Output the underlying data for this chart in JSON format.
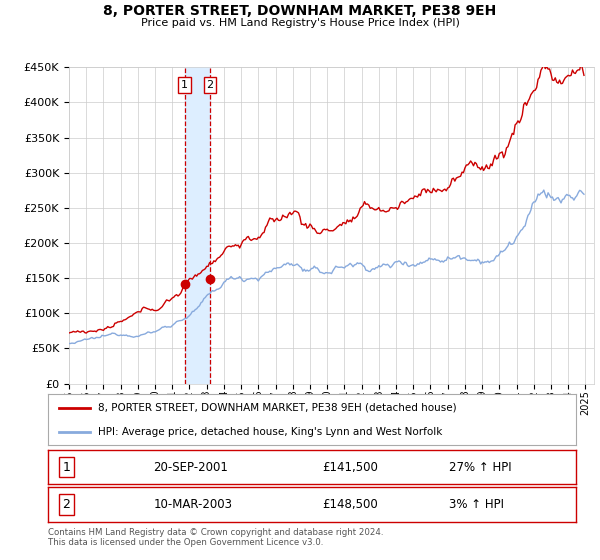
{
  "title": "8, PORTER STREET, DOWNHAM MARKET, PE38 9EH",
  "subtitle": "Price paid vs. HM Land Registry's House Price Index (HPI)",
  "ylim": [
    0,
    450000
  ],
  "yticks": [
    0,
    50000,
    100000,
    150000,
    200000,
    250000,
    300000,
    350000,
    400000,
    450000
  ],
  "xlim_start": 1995.0,
  "xlim_end": 2025.5,
  "xticks": [
    1995,
    1996,
    1997,
    1998,
    1999,
    2000,
    2001,
    2002,
    2003,
    2004,
    2005,
    2006,
    2007,
    2008,
    2009,
    2010,
    2011,
    2012,
    2013,
    2014,
    2015,
    2016,
    2017,
    2018,
    2019,
    2020,
    2021,
    2022,
    2023,
    2024,
    2025
  ],
  "sale1_date": 2001.72,
  "sale1_price": 141500,
  "sale1_label": "1",
  "sale2_date": 2003.19,
  "sale2_price": 148500,
  "sale2_label": "2",
  "legend_line1": "8, PORTER STREET, DOWNHAM MARKET, PE38 9EH (detached house)",
  "legend_line2": "HPI: Average price, detached house, King's Lynn and West Norfolk",
  "table_row1_num": "1",
  "table_row1_date": "20-SEP-2001",
  "table_row1_price": "£141,500",
  "table_row1_hpi": "27% ↑ HPI",
  "table_row2_num": "2",
  "table_row2_date": "10-MAR-2003",
  "table_row2_price": "£148,500",
  "table_row2_hpi": "3% ↑ HPI",
  "footer": "Contains HM Land Registry data © Crown copyright and database right 2024.\nThis data is licensed under the Open Government Licence v3.0.",
  "price_color": "#cc0000",
  "hpi_color": "#88aadd",
  "shade_color": "#ddeeff",
  "grid_color": "#cccccc",
  "background_color": "#ffffff",
  "fig_bg_color": "#ffffff"
}
